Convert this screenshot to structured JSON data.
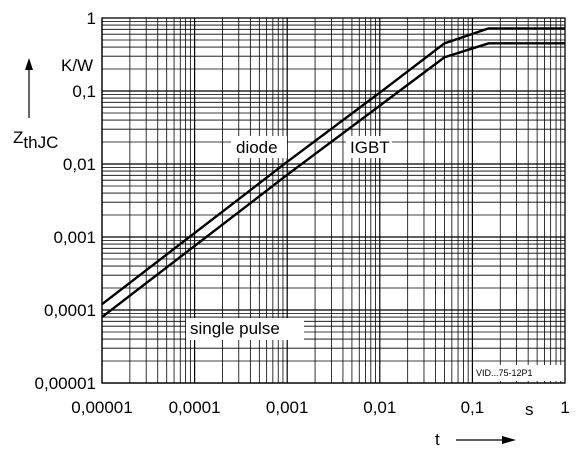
{
  "chart_data": {
    "type": "line",
    "x_scale": "log",
    "y_scale": "log",
    "xlim": [
      1e-05,
      1
    ],
    "ylim": [
      1e-05,
      1
    ],
    "grid": true,
    "x_ticks": [
      "0,00001",
      "0,0001",
      "0,001",
      "0,01",
      "0,1",
      "1"
    ],
    "y_ticks": [
      "1",
      "0,1",
      "0,01",
      "0,001",
      "0,0001",
      "0,00001"
    ],
    "x_unit": "s",
    "xlabel": "t",
    "y_unit": "K/W",
    "ylabel_main": "Z",
    "ylabel_sub": "thJC",
    "series": [
      {
        "name": "diode",
        "x": [
          1e-05,
          0.001,
          0.01,
          0.05,
          0.15,
          1
        ],
        "y": [
          0.00012,
          0.0107,
          0.095,
          0.45,
          0.72,
          0.72
        ]
      },
      {
        "name": "IGBT",
        "x": [
          1e-05,
          0.001,
          0.01,
          0.05,
          0.15,
          1
        ],
        "y": [
          8e-05,
          0.0071,
          0.063,
          0.29,
          0.45,
          0.45
        ]
      }
    ],
    "annotations": [
      "single pulse"
    ],
    "reference": "VID...75-12P1"
  }
}
